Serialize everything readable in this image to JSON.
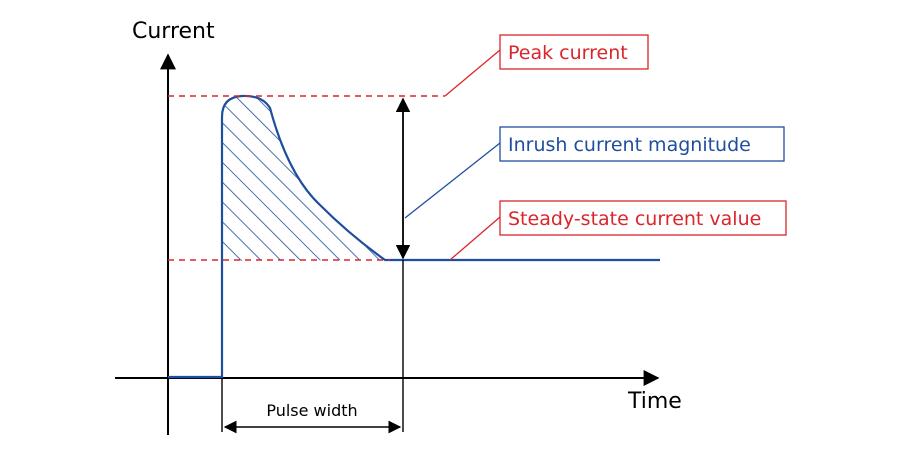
{
  "axes": {
    "y_label": "Current",
    "x_label": "Time"
  },
  "labels": {
    "peak": "Peak current",
    "inrush": "Inrush current magnitude",
    "steady": "Steady-state current value",
    "pulse_width": "Pulse width"
  },
  "colors": {
    "axis": "#000000",
    "curve": "#1f4e9e",
    "red": "#d9262c",
    "blue_box": "#1f4e9e",
    "background": "#ffffff"
  }
}
